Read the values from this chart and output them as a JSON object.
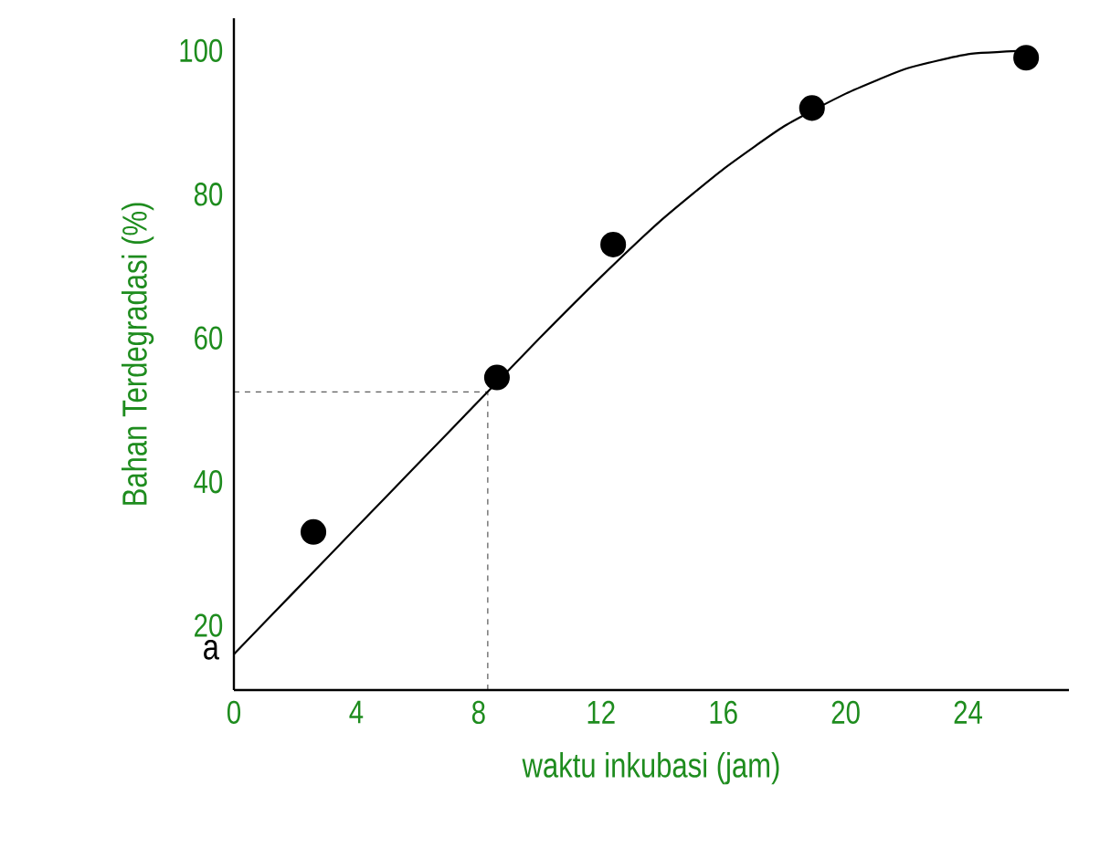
{
  "chart_data": {
    "type": "scatter",
    "xlabel": "waktu inkubasi  (jam)",
    "ylabel": "Bahan Terdegradasi (%)",
    "xlim": [
      0,
      27.3
    ],
    "ylim": [
      11,
      104.5
    ],
    "xticks": [
      0,
      4,
      8,
      12,
      16,
      20,
      24
    ],
    "yticks": [
      20,
      40,
      60,
      80,
      100
    ],
    "marker": "circle",
    "series": [
      {
        "color": "#000000",
        "x": [
          2.6,
          8.6,
          12.4,
          18.9,
          25.9
        ],
        "values": [
          33,
          54.5,
          73,
          92,
          99
        ]
      },
      {
        "type": "line",
        "color": "#000000",
        "marker": "none",
        "x": [
          0,
          2,
          4,
          6,
          8,
          10,
          12,
          14,
          16,
          18,
          20,
          22,
          24,
          26
        ],
        "values": [
          16,
          24.8,
          33.6,
          42.4,
          51.2,
          60,
          68.5,
          76.5,
          83.5,
          89.5,
          94,
          97.5,
          99.5,
          100
        ]
      }
    ],
    "ref_lines": [
      {
        "axis": "x",
        "value": 8.3,
        "line_style": "dashed"
      },
      {
        "axis": "y",
        "value": 52.5,
        "line_style": "dashed"
      }
    ],
    "annotations": [
      "a"
    ]
  }
}
